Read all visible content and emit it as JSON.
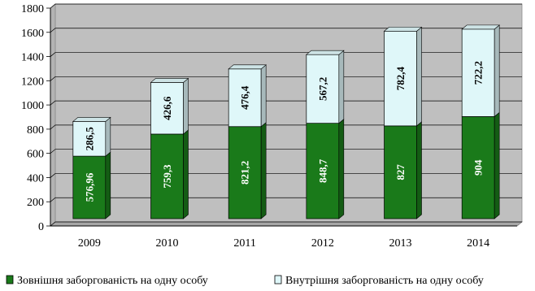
{
  "chart_data": {
    "type": "bar",
    "stacked": true,
    "categories": [
      "2009",
      "2010",
      "2011",
      "2012",
      "2013",
      "2014"
    ],
    "series": [
      {
        "name": "Зовнішня заборгованість на одну особу",
        "values": [
          576.96,
          759.3,
          821.2,
          848.7,
          827,
          904
        ],
        "labels": [
          "576,96",
          "759,3",
          "821,2",
          "848,7",
          "827",
          "904"
        ],
        "color": "#1a7a1a"
      },
      {
        "name": "Внутрішня заборгованість на одну особу",
        "values": [
          286.5,
          426.6,
          476.4,
          567.2,
          782.4,
          722.2
        ],
        "labels": [
          "286,5",
          "426,6",
          "476,4",
          "567,2",
          "782,4",
          "722,2"
        ],
        "color": "#dff7f9"
      }
    ],
    "ylim": [
      0,
      1800
    ],
    "yticks": [
      0,
      200,
      400,
      600,
      800,
      1000,
      1200,
      1400,
      1600,
      1800
    ],
    "ytick_labels": [
      "0",
      "200",
      "400",
      "600",
      "800",
      "1000",
      "1200",
      "1400",
      "1600",
      "1800"
    ],
    "grid": true,
    "legend_position": "bottom",
    "title": "",
    "xlabel": "",
    "ylabel": ""
  }
}
